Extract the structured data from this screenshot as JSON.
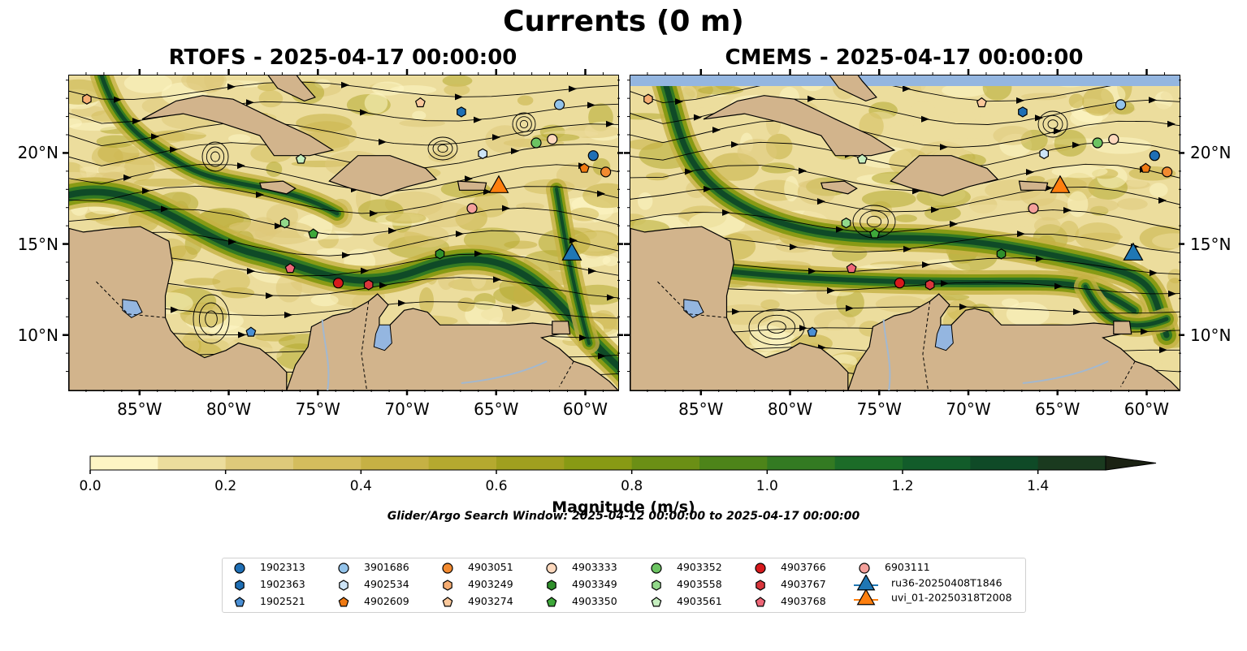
{
  "figure": {
    "title": "Currents (0 m)",
    "window_note": "Glider/Argo Search Window: 2025-04-12 00:00:00 to 2025-04-17 00:00:00"
  },
  "panels": [
    {
      "title": "RTOFS - 2025-04-17 00:00:00"
    },
    {
      "title": "CMEMS - 2025-04-17 00:00:00"
    }
  ],
  "axes": {
    "lon_range": [
      -89.0,
      -58.2
    ],
    "lat_range": [
      7.0,
      24.3
    ],
    "lon_ticks": [
      {
        "value": -85,
        "label": "85°W"
      },
      {
        "value": -80,
        "label": "80°W"
      },
      {
        "value": -75,
        "label": "75°W"
      },
      {
        "value": -70,
        "label": "70°W"
      },
      {
        "value": -65,
        "label": "65°W"
      },
      {
        "value": -60,
        "label": "60°W"
      }
    ],
    "lat_ticks": [
      {
        "value": 20,
        "label": "20°N"
      },
      {
        "value": 15,
        "label": "15°N"
      },
      {
        "value": 10,
        "label": "10°N"
      }
    ]
  },
  "colorbar": {
    "label": "Magnitude (m/s)",
    "min": 0.0,
    "max": 1.5,
    "extend": "max",
    "ticks": [
      {
        "value": 0.0,
        "label": "0.0"
      },
      {
        "value": 0.2,
        "label": "0.2"
      },
      {
        "value": 0.4,
        "label": "0.4"
      },
      {
        "value": 0.6,
        "label": "0.6"
      },
      {
        "value": 0.8,
        "label": "0.8"
      },
      {
        "value": 1.0,
        "label": "1.0"
      },
      {
        "value": 1.2,
        "label": "1.2"
      },
      {
        "value": 1.4,
        "label": "1.4"
      }
    ],
    "colors": [
      "#fdf5c4",
      "#ecdd9d",
      "#dec97a",
      "#d4bd5d",
      "#c6b144",
      "#b5a92f",
      "#a09f1f",
      "#889a14",
      "#6b8f15",
      "#4d8419",
      "#337a22",
      "#1c6c28",
      "#125c2a",
      "#0f4a27",
      "#1a3a1f",
      "#1e2c18",
      "#1b2213"
    ]
  },
  "colors": {
    "land": "#d2b48c",
    "lake": "#94b6e0",
    "river": "#a2b8d0"
  },
  "legend": {
    "columns": [
      [
        {
          "id": "1902313",
          "marker": "circle",
          "color": "#1f6fb5"
        },
        {
          "id": "1902363",
          "marker": "hexagon",
          "color": "#1f6fb5"
        },
        {
          "id": "1902521",
          "marker": "pentagon",
          "color": "#4a8fd4"
        }
      ],
      [
        {
          "id": "3901686",
          "marker": "circle",
          "color": "#93c3ea"
        },
        {
          "id": "4902534",
          "marker": "hexagon",
          "color": "#cde4f7"
        },
        {
          "id": "4902609",
          "marker": "pentagon",
          "color": "#f07a12"
        }
      ],
      [
        {
          "id": "4903051",
          "marker": "circle",
          "color": "#f28a30"
        },
        {
          "id": "4903249",
          "marker": "hexagon",
          "color": "#f6ad72"
        },
        {
          "id": "4903274",
          "marker": "pentagon",
          "color": "#fac89b"
        }
      ],
      [
        {
          "id": "4903333",
          "marker": "circle",
          "color": "#fdd8bd"
        },
        {
          "id": "4903349",
          "marker": "hexagon",
          "color": "#2f8f2b"
        },
        {
          "id": "4903350",
          "marker": "pentagon",
          "color": "#3ea83a"
        }
      ],
      [
        {
          "id": "4903352",
          "marker": "circle",
          "color": "#6cc462"
        },
        {
          "id": "4903558",
          "marker": "hexagon",
          "color": "#92d88a"
        },
        {
          "id": "4903561",
          "marker": "pentagon",
          "color": "#c6efc0"
        }
      ],
      [
        {
          "id": "4903766",
          "marker": "circle",
          "color": "#d7191c"
        },
        {
          "id": "4903767",
          "marker": "hexagon",
          "color": "#d9363c"
        },
        {
          "id": "4903768",
          "marker": "pentagon",
          "color": "#ee6677"
        }
      ],
      [
        {
          "id": "6903111",
          "marker": "circle",
          "color": "#f4a09b"
        },
        {
          "id": "ru36-20250408T1846",
          "marker": "triangle",
          "color": "#1f77b4"
        },
        {
          "id": "uvi_01-20250318T2008",
          "marker": "triangle",
          "color": "#ff7f0e"
        }
      ]
    ]
  },
  "markers": [
    {
      "panel": 0,
      "id": "1902313",
      "lon": -59.6,
      "lat": 19.9
    },
    {
      "panel": 0,
      "id": "1902363",
      "lon": -67.0,
      "lat": 22.3
    },
    {
      "panel": 0,
      "id": "1902521",
      "lon": -78.8,
      "lat": 10.2
    },
    {
      "panel": 0,
      "id": "3901686",
      "lon": -61.5,
      "lat": 22.7
    },
    {
      "panel": 0,
      "id": "4902534",
      "lon": -65.8,
      "lat": 20.0
    },
    {
      "panel": 0,
      "id": "4902609",
      "lon": -60.1,
      "lat": 19.2
    },
    {
      "panel": 0,
      "id": "4903051",
      "lon": -58.9,
      "lat": 19.0
    },
    {
      "panel": 0,
      "id": "4903249",
      "lon": -88.0,
      "lat": 23.0
    },
    {
      "panel": 0,
      "id": "4903274",
      "lon": -69.3,
      "lat": 22.8
    },
    {
      "panel": 0,
      "id": "4903333",
      "lon": -61.9,
      "lat": 20.8
    },
    {
      "panel": 0,
      "id": "4903349",
      "lon": -68.2,
      "lat": 14.5
    },
    {
      "panel": 0,
      "id": "4903350",
      "lon": -75.3,
      "lat": 15.6
    },
    {
      "panel": 0,
      "id": "4903352",
      "lon": -62.8,
      "lat": 20.6
    },
    {
      "panel": 0,
      "id": "4903558",
      "lon": -76.9,
      "lat": 16.2
    },
    {
      "panel": 0,
      "id": "4903561",
      "lon": -76.0,
      "lat": 19.7
    },
    {
      "panel": 0,
      "id": "4903766",
      "lon": -73.9,
      "lat": 12.9
    },
    {
      "panel": 0,
      "id": "4903767",
      "lon": -72.2,
      "lat": 12.8
    },
    {
      "panel": 0,
      "id": "4903768",
      "lon": -76.6,
      "lat": 13.7
    },
    {
      "panel": 0,
      "id": "6903111",
      "lon": -66.4,
      "lat": 17.0
    },
    {
      "panel": 0,
      "id": "ru36-20250408T1846",
      "lon": -60.8,
      "lat": 14.5
    },
    {
      "panel": 0,
      "id": "uvi_01-20250318T2008",
      "lon": -64.9,
      "lat": 18.2
    },
    {
      "panel": 1,
      "id": "1902313",
      "lon": -59.6,
      "lat": 19.9
    },
    {
      "panel": 1,
      "id": "1902363",
      "lon": -67.0,
      "lat": 22.3
    },
    {
      "panel": 1,
      "id": "1902521",
      "lon": -78.8,
      "lat": 10.2
    },
    {
      "panel": 1,
      "id": "3901686",
      "lon": -61.5,
      "lat": 22.7
    },
    {
      "panel": 1,
      "id": "4902534",
      "lon": -65.8,
      "lat": 20.0
    },
    {
      "panel": 1,
      "id": "4902609",
      "lon": -60.1,
      "lat": 19.2
    },
    {
      "panel": 1,
      "id": "4903051",
      "lon": -58.9,
      "lat": 19.0
    },
    {
      "panel": 1,
      "id": "4903249",
      "lon": -88.0,
      "lat": 23.0
    },
    {
      "panel": 1,
      "id": "4903274",
      "lon": -69.3,
      "lat": 22.8
    },
    {
      "panel": 1,
      "id": "4903333",
      "lon": -61.9,
      "lat": 20.8
    },
    {
      "panel": 1,
      "id": "4903349",
      "lon": -68.2,
      "lat": 14.5
    },
    {
      "panel": 1,
      "id": "4903350",
      "lon": -75.3,
      "lat": 15.6
    },
    {
      "panel": 1,
      "id": "4903352",
      "lon": -62.8,
      "lat": 20.6
    },
    {
      "panel": 1,
      "id": "4903558",
      "lon": -76.9,
      "lat": 16.2
    },
    {
      "panel": 1,
      "id": "4903561",
      "lon": -76.0,
      "lat": 19.7
    },
    {
      "panel": 1,
      "id": "4903766",
      "lon": -73.9,
      "lat": 12.9
    },
    {
      "panel": 1,
      "id": "4903767",
      "lon": -72.2,
      "lat": 12.8
    },
    {
      "panel": 1,
      "id": "4903768",
      "lon": -76.6,
      "lat": 13.7
    },
    {
      "panel": 1,
      "id": "6903111",
      "lon": -66.4,
      "lat": 17.0
    },
    {
      "panel": 1,
      "id": "ru36-20250408T1846",
      "lon": -60.8,
      "lat": 14.5
    },
    {
      "panel": 1,
      "id": "uvi_01-20250318T2008",
      "lon": -64.9,
      "lat": 18.2
    }
  ]
}
